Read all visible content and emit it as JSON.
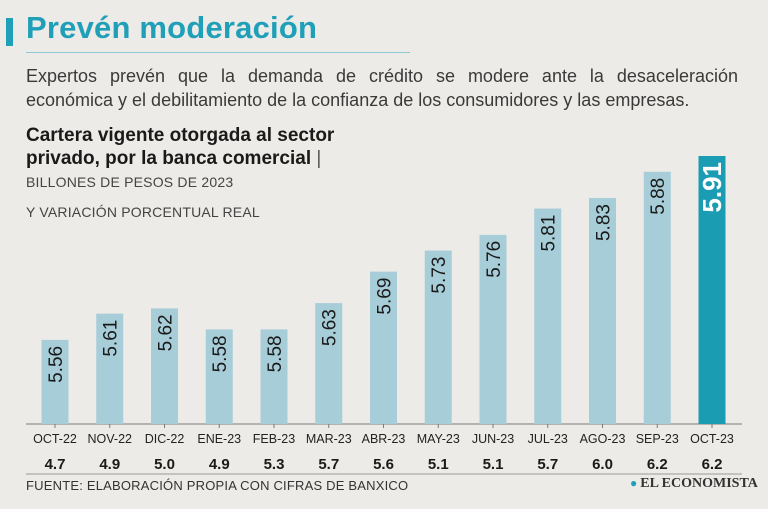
{
  "header": {
    "title": "Prevén moderación",
    "subtitle": "Expertos prevén que la demanda de crédito se modere ante la desaceleración económica y el debilitamiento de la confianza de los consumidores y las empresas."
  },
  "chart_data": {
    "type": "bar",
    "title": "Cartera vigente otorgada al sector privado, por la banca comercial",
    "unit_line1": "BILLONES DE PESOS DE 2023",
    "unit_line2": "Y VARIACIÓN PORCENTUAL REAL",
    "categories": [
      "OCT-22",
      "NOV-22",
      "DIC-22",
      "ENE-23",
      "FEB-23",
      "MAR-23",
      "ABR-23",
      "MAY-23",
      "JUN-23",
      "JUL-23",
      "AGO-23",
      "SEP-23",
      "OCT-23"
    ],
    "values": [
      5.56,
      5.61,
      5.62,
      5.58,
      5.58,
      5.63,
      5.69,
      5.73,
      5.76,
      5.81,
      5.83,
      5.88,
      5.91
    ],
    "value_labels": [
      "5.56",
      "5.61",
      "5.62",
      "5.58",
      "5.58",
      "5.63",
      "5.69",
      "5.73",
      "5.76",
      "5.81",
      "5.83",
      "5.88",
      "5.91"
    ],
    "real_change_pct": [
      "4.7",
      "4.9",
      "5.0",
      "4.9",
      "5.3",
      "5.7",
      "5.6",
      "5.1",
      "5.1",
      "5.7",
      "6.0",
      "6.2",
      "6.2"
    ],
    "ylim": [
      5.4,
      5.91
    ],
    "highlight_index": 12,
    "colors": {
      "bar": "#a7cdd9",
      "highlight": "#1a9cb3",
      "label": "#1a1a1a",
      "highlight_label": "#ffffff"
    }
  },
  "footer": {
    "source": "FUENTE: ELABORACIÓN PROPIA CON CIFRAS DE BANXICO",
    "brand": "EL ECONOMISTA",
    "brand_icon": "globe-icon"
  }
}
